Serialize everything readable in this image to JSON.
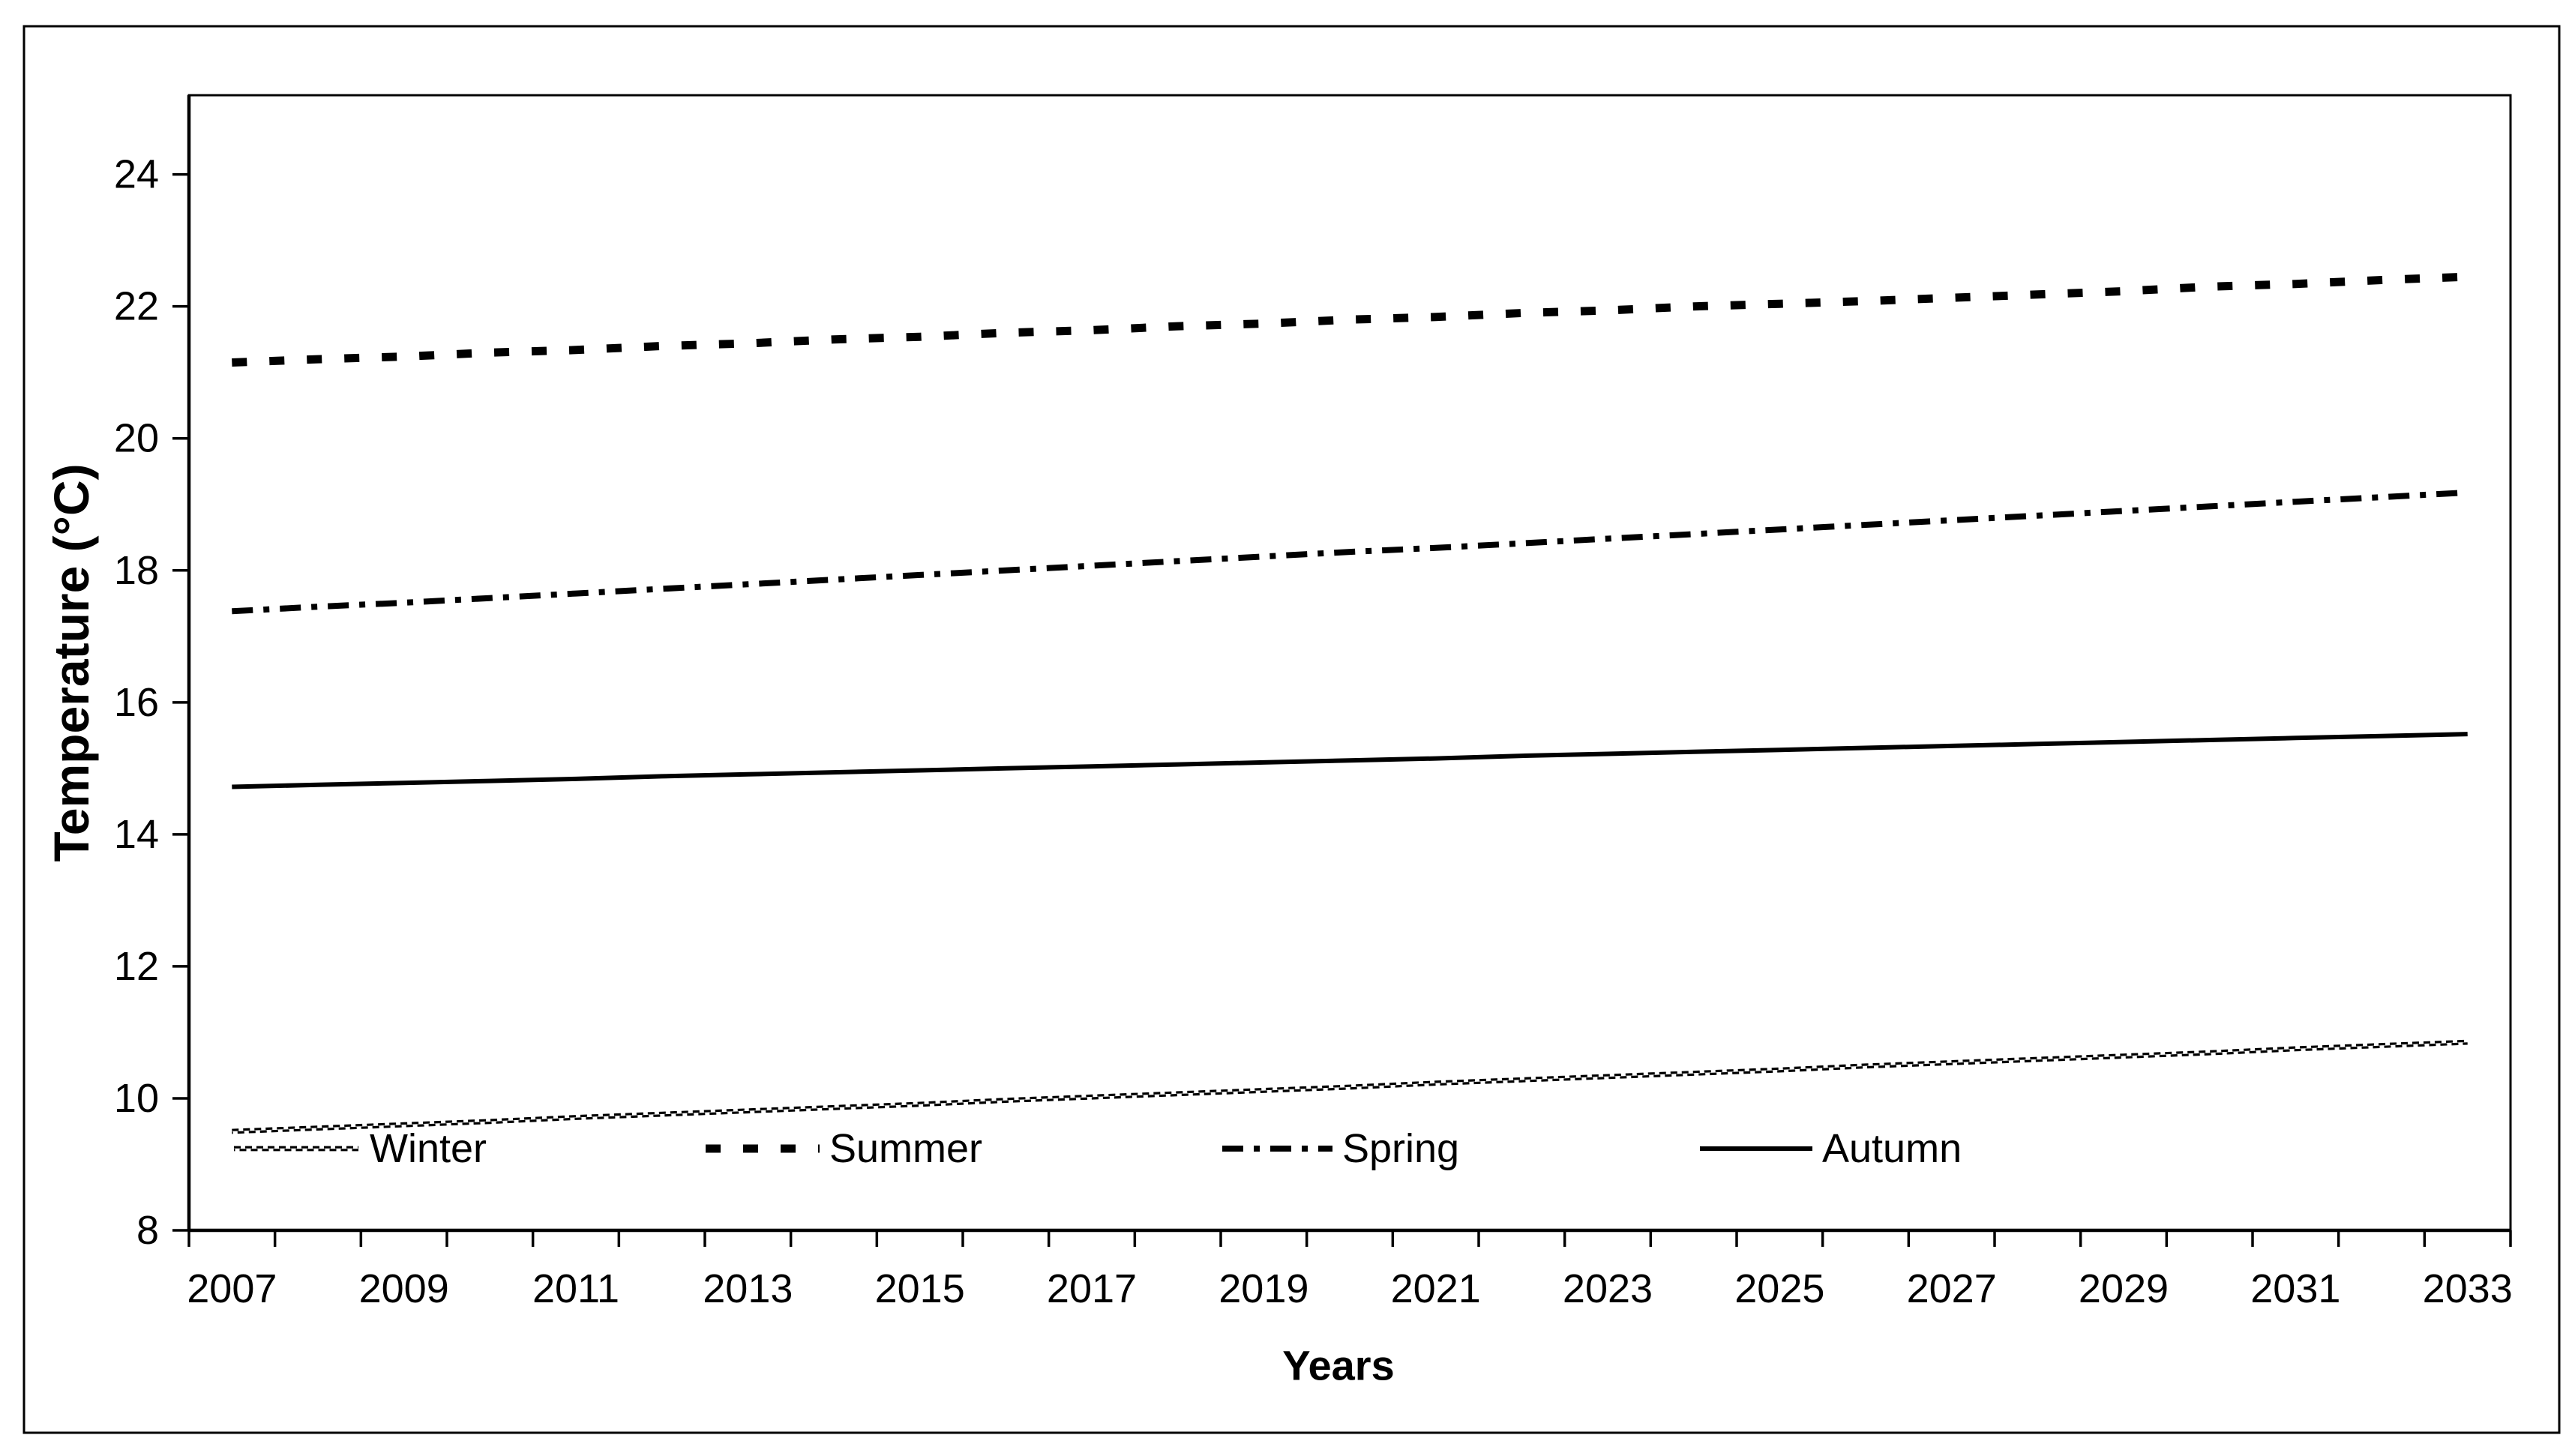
{
  "figure": {
    "background_color": "#ffffff",
    "border_color": "#000000",
    "ink_color": "#000000"
  },
  "chart_data": {
    "type": "line",
    "title": "",
    "xlabel": "Years",
    "ylabel": "Temperature (°C)",
    "x": [
      2007,
      2008,
      2009,
      2010,
      2011,
      2012,
      2013,
      2014,
      2015,
      2016,
      2017,
      2018,
      2019,
      2020,
      2021,
      2022,
      2023,
      2024,
      2025,
      2026,
      2027,
      2028,
      2029,
      2030,
      2031,
      2032,
      2033
    ],
    "x_tick_labels": [
      "2007",
      "2009",
      "2011",
      "2013",
      "2015",
      "2017",
      "2019",
      "2021",
      "2023",
      "2025",
      "2027",
      "2029",
      "2031",
      "2033"
    ],
    "y_ticks": [
      8,
      10,
      12,
      14,
      16,
      18,
      20,
      22,
      24
    ],
    "ylim": [
      8,
      25.2
    ],
    "grid": false,
    "legend_position": "inside-bottom",
    "legend_order": [
      "Winter",
      "Summer",
      "Spring",
      "Autumn"
    ],
    "series": [
      {
        "name": "Winter",
        "style": "thin-squiggle",
        "values": [
          9.5,
          9.55,
          9.6,
          9.65,
          9.71,
          9.76,
          9.81,
          9.86,
          9.91,
          9.97,
          10.02,
          10.07,
          10.12,
          10.17,
          10.23,
          10.28,
          10.33,
          10.38,
          10.43,
          10.49,
          10.54,
          10.59,
          10.64,
          10.69,
          10.75,
          10.8,
          10.85
        ]
      },
      {
        "name": "Summer",
        "style": "thick-dashed",
        "values": [
          21.15,
          21.2,
          21.24,
          21.3,
          21.34,
          21.4,
          21.44,
          21.5,
          21.54,
          21.6,
          21.64,
          21.7,
          21.74,
          21.8,
          21.84,
          21.9,
          21.94,
          22.0,
          22.04,
          22.08,
          22.13,
          22.18,
          22.23,
          22.3,
          22.34,
          22.4,
          22.45
        ]
      },
      {
        "name": "Spring",
        "style": "dash-dot",
        "values": [
          17.38,
          17.45,
          17.51,
          17.58,
          17.65,
          17.72,
          17.79,
          17.86,
          17.93,
          18.0,
          18.07,
          18.14,
          18.21,
          18.28,
          18.34,
          18.41,
          18.48,
          18.55,
          18.62,
          18.69,
          18.76,
          18.83,
          18.9,
          18.97,
          19.04,
          19.11,
          19.18
        ]
      },
      {
        "name": "Autumn",
        "style": "solid",
        "values": [
          14.72,
          14.75,
          14.78,
          14.81,
          14.84,
          14.88,
          14.91,
          14.94,
          14.97,
          15.0,
          15.03,
          15.06,
          15.09,
          15.12,
          15.15,
          15.19,
          15.22,
          15.25,
          15.28,
          15.31,
          15.34,
          15.37,
          15.4,
          15.43,
          15.46,
          15.49,
          15.52
        ]
      }
    ]
  }
}
